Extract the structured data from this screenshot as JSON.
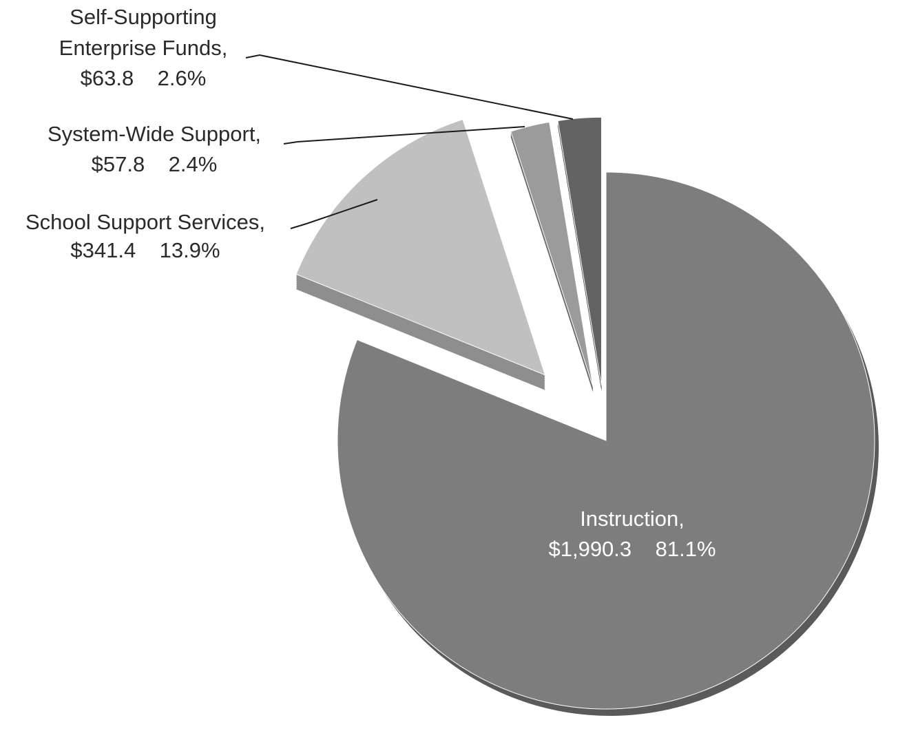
{
  "chart_data": {
    "type": "pie",
    "title": "",
    "slices": [
      {
        "name": "Instruction",
        "value": 1990.3,
        "percent": 81.1,
        "label_line1": "Instruction,",
        "label_line2": "$1,990.3    81.1%",
        "color": "#7d7d7d",
        "side_color": "#5a5a5a",
        "exploded": false
      },
      {
        "name": "School Support Services",
        "value": 341.4,
        "percent": 13.9,
        "label_line1": "School Support Services,",
        "label_line2": "$341.4    13.9%",
        "color": "#c0c0c0",
        "side_color": "#8e8e8e",
        "exploded": true
      },
      {
        "name": "System-Wide Support",
        "value": 57.8,
        "percent": 2.4,
        "label_line1": "System-Wide Support,",
        "label_line2": "$57.8    2.4%",
        "color": "#9b9b9b",
        "side_color": "#6c6c6c",
        "exploded": true
      },
      {
        "name": "Self-Supporting Enterprise Funds",
        "value": 63.8,
        "percent": 2.6,
        "label_line0": "Self-Supporting",
        "label_line1": "Enterprise Funds,",
        "label_line2": "$63.8    2.6%",
        "color": "#636363",
        "side_color": "#454545",
        "exploded": true
      }
    ],
    "legend": "none",
    "style": "3d-exploded"
  }
}
